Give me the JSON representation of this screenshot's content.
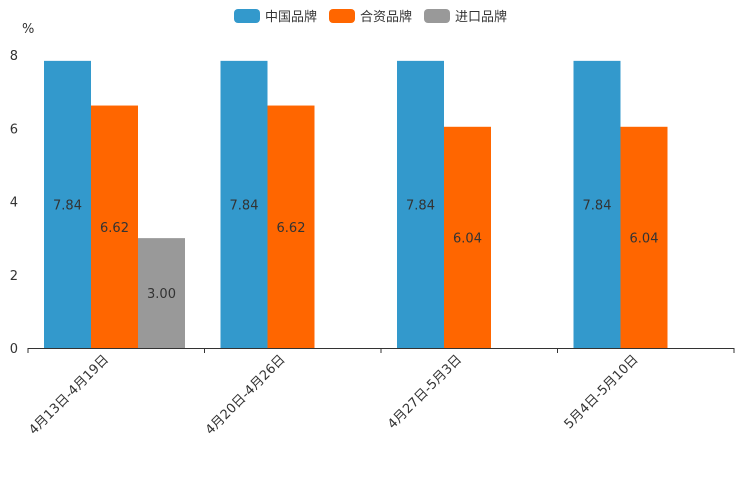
{
  "chart_data": {
    "type": "bar",
    "ylabel": "%",
    "ylim": [
      0,
      8
    ],
    "yticks": [
      0,
      2,
      4,
      6,
      8
    ],
    "categories": [
      "4月13日-4月19日",
      "4月20日-4月26日",
      "4月27日-5月3日",
      "5月4日-5月10日"
    ],
    "series": [
      {
        "name": "中国品牌",
        "color": "#3399CC",
        "values": [
          7.84,
          7.84,
          7.84,
          7.84
        ],
        "labels": [
          "7.84",
          "7.84",
          "7.84",
          "7.84"
        ]
      },
      {
        "name": "合资品牌",
        "color": "#FF6600",
        "values": [
          6.62,
          6.62,
          6.04,
          6.04
        ],
        "labels": [
          "6.62",
          "6.62",
          "6.04",
          "6.04"
        ]
      },
      {
        "name": "进口品牌",
        "color": "#999999",
        "values": [
          3.0,
          null,
          null,
          null
        ],
        "labels": [
          "3.00",
          null,
          null,
          null
        ]
      }
    ],
    "legend": "top-center"
  }
}
